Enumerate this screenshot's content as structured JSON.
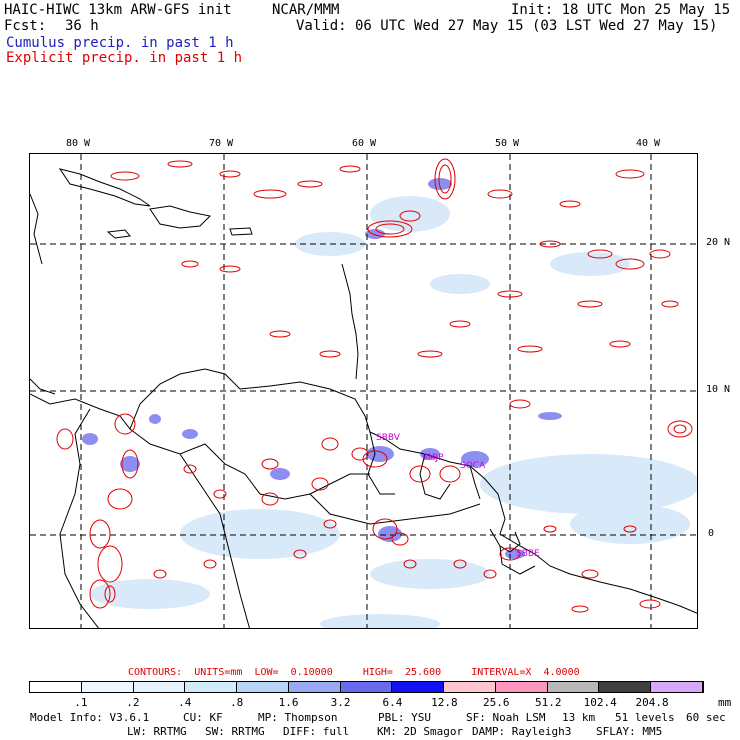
{
  "header": {
    "model": "HAIC-HIWC 13km ARW-GFS init",
    "org": "NCAR/MMM",
    "init": "Init: 18 UTC Mon 25 May 15",
    "fcst_label": "Fcst:",
    "fcst_value": "36 h",
    "valid": "Valid: 06 UTC Wed 27 May 15 (03 LST Wed 27 May 15)",
    "field1": "Cumulus precip. in past 1 h",
    "field2": "Explicit precip. in past 1 h"
  },
  "map": {
    "longitude_labels": [
      "80 W",
      "70 W",
      "60 W",
      "50 W",
      "40 W"
    ],
    "latitude_labels": [
      "20 N",
      "10 N",
      "0"
    ],
    "stations": [
      "SBBV",
      "SMJP",
      "SOCA",
      "SBBE"
    ],
    "colors": {
      "coast": "#000000",
      "grid": "#000000",
      "explicit_contour": "#e00000",
      "station": "#d000d0"
    }
  },
  "contours": {
    "label": "CONTOURS:",
    "units": "UNITS=mm",
    "low": "LOW=  0.10000",
    "high": "HIGH=  25.600",
    "interval": "INTERVAL=X  4.0000"
  },
  "colorbar": {
    "labels": [
      ".1",
      ".2",
      ".4",
      ".8",
      "1.6",
      "3.2",
      "6.4",
      "12.8",
      "25.6",
      "51.2",
      "102.4",
      "204.8"
    ],
    "unit": "mm",
    "colors": [
      "#ffffff",
      "#f0f8ff",
      "#e6f2fc",
      "#d0ecf8",
      "#b6d4f6",
      "#9aaaf2",
      "#6a6af0",
      "#1010f0",
      "#ffc6d2",
      "#ff96c0",
      "#b8b8b8",
      "#404040",
      "#d8a8f8"
    ]
  },
  "model_info": {
    "line1": [
      "Model Info: V3.6.1",
      "CU: KF",
      "MP: Thompson",
      "PBL: YSU",
      "SF: Noah LSM",
      "13 km",
      "51 levels",
      "60 sec"
    ],
    "line2": [
      "LW: RRTMG",
      "SW: RRTMG",
      "DIFF: full",
      "KM: 2D Smagor",
      "DAMP: Rayleigh3",
      "SFLAY: MM5"
    ]
  }
}
